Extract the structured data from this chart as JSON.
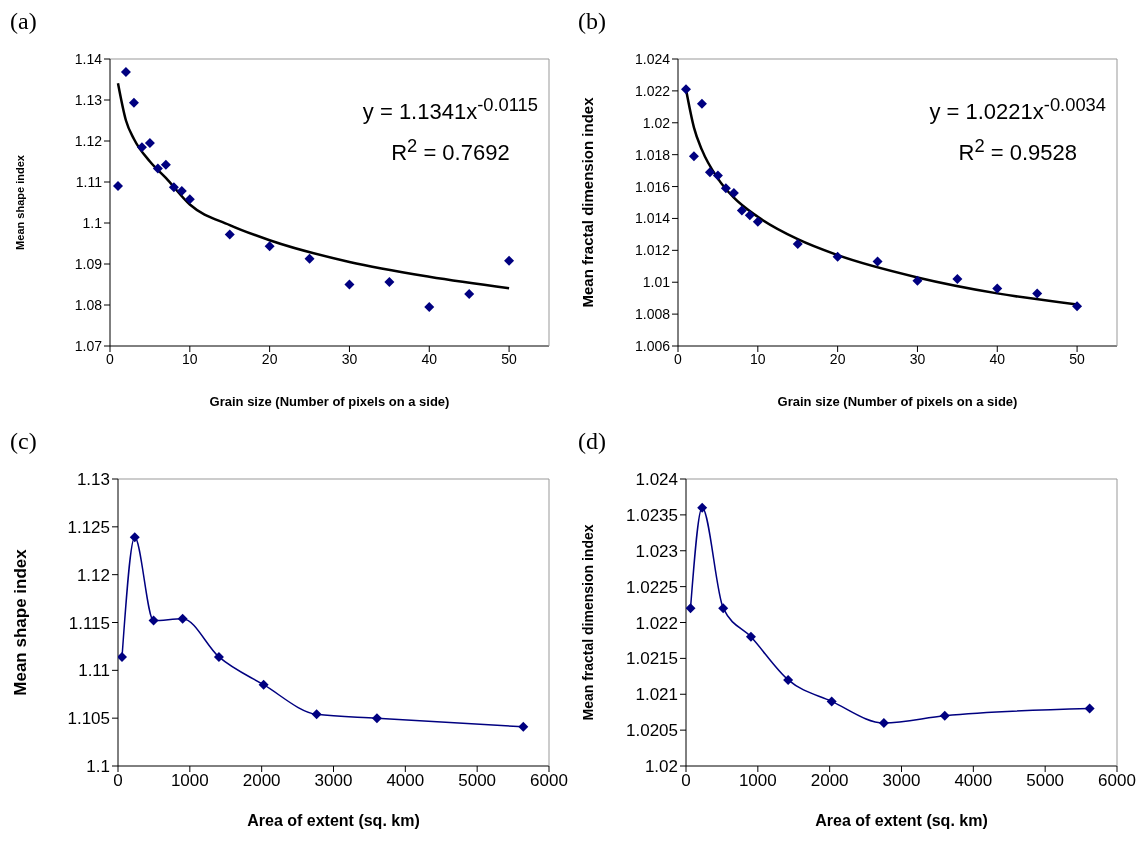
{
  "chart_data": [
    {
      "type": "scatter",
      "title": "(a)",
      "xlabel": "Grain size (Number of pixels on a side)",
      "ylabel": "Mean shape index",
      "xlim": [
        0,
        55
      ],
      "xticks": [
        0,
        10,
        20,
        30,
        40,
        50
      ],
      "ylim": [
        1.07,
        1.14
      ],
      "yticks": [
        1.07,
        1.08,
        1.09,
        1.1,
        1.11,
        1.12,
        1.13,
        1.14
      ],
      "grid": false,
      "legend": false,
      "marker": "diamond",
      "annotations": [
        "y = 1.1341x$^{-0.0115}$",
        "R$^{2}$ = 0.7692"
      ],
      "series": [
        {
          "type": "scatter",
          "color": "#000080",
          "x": [
            1,
            2,
            3,
            4,
            5,
            6,
            7,
            8,
            9,
            10,
            15,
            20,
            25,
            30,
            35,
            40,
            45,
            50
          ],
          "values": [
            1.109,
            1.1368,
            1.1293,
            1.1185,
            1.1195,
            1.1133,
            1.1142,
            1.1087,
            1.1078,
            1.1058,
            1.0972,
            1.0943,
            1.0913,
            1.085,
            1.0856,
            1.0795,
            1.0827,
            1.0908
          ]
        },
        {
          "type": "line",
          "marker": "none",
          "color": "#000000",
          "x": [
            1,
            2,
            3,
            5,
            7,
            10,
            15,
            20,
            30,
            40,
            50
          ],
          "values": [
            1.1341,
            1.125,
            1.1205,
            1.115,
            1.111,
            1.1045,
            1.0995,
            1.0958,
            1.0905,
            1.0869,
            1.0841
          ]
        }
      ]
    },
    {
      "type": "scatter",
      "title": "(b)",
      "xlabel": "Grain size (Number of pixels on a side)",
      "ylabel": "Mean fractal dimension index",
      "xlim": [
        0,
        55
      ],
      "xticks": [
        0,
        10,
        20,
        30,
        40,
        50
      ],
      "ylim": [
        1.006,
        1.024
      ],
      "yticks": [
        1.006,
        1.008,
        1.01,
        1.012,
        1.014,
        1.016,
        1.018,
        1.02,
        1.022,
        1.024
      ],
      "grid": false,
      "legend": false,
      "marker": "diamond",
      "annotations": [
        "y = 1.0221x$^{-0.0034}$",
        "R$^{2}$ = 0.9528"
      ],
      "series": [
        {
          "type": "scatter",
          "color": "#000080",
          "x": [
            1,
            2,
            3,
            4,
            5,
            6,
            7,
            8,
            9,
            10,
            15,
            20,
            25,
            30,
            35,
            40,
            45,
            50
          ],
          "values": [
            1.0221,
            1.0179,
            1.0212,
            1.0169,
            1.0167,
            1.0159,
            1.0156,
            1.0145,
            1.0142,
            1.0138,
            1.0124,
            1.0116,
            1.0113,
            1.0101,
            1.0102,
            1.0096,
            1.0093,
            1.0085
          ]
        },
        {
          "type": "line",
          "marker": "none",
          "color": "#000000",
          "x": [
            1,
            2,
            3,
            5,
            7,
            10,
            15,
            20,
            30,
            40,
            50
          ],
          "values": [
            1.0221,
            1.0197,
            1.0183,
            1.0165,
            1.0153,
            1.0141,
            1.0127,
            1.0117,
            1.0103,
            1.0093,
            1.0086
          ]
        }
      ]
    },
    {
      "type": "line",
      "title": "(c)",
      "xlabel": "Area of extent (sq. km)",
      "ylabel": "Mean shape index",
      "xlim": [
        0,
        6000
      ],
      "xticks": [
        0,
        1000,
        2000,
        3000,
        4000,
        5000,
        6000
      ],
      "ylim": [
        1.1,
        1.13
      ],
      "yticks": [
        1.1,
        1.105,
        1.11,
        1.115,
        1.12,
        1.125,
        1.13
      ],
      "grid": false,
      "legend": false,
      "marker": "diamond",
      "line_style": "solid",
      "series": [
        {
          "color": "#000080",
          "x": [
            56,
            233,
            495,
            900,
            1405,
            2027,
            2765,
            3605,
            5642
          ],
          "values": [
            1.1114,
            1.1239,
            1.1152,
            1.1154,
            1.1114,
            1.1085,
            1.1054,
            1.105,
            1.1041
          ]
        }
      ]
    },
    {
      "type": "line",
      "title": "(d)",
      "xlabel": "Area of extent (sq. km)",
      "ylabel": "Mean fractal dimension index",
      "xlim": [
        0,
        6000
      ],
      "xticks": [
        0,
        1000,
        2000,
        3000,
        4000,
        5000,
        6000
      ],
      "ylim": [
        1.02,
        1.024
      ],
      "yticks": [
        1.02,
        1.0205,
        1.021,
        1.0215,
        1.022,
        1.0225,
        1.023,
        1.0235,
        1.024
      ],
      "grid": false,
      "legend": false,
      "marker": "diamond",
      "line_style": "solid",
      "series": [
        {
          "color": "#000080",
          "x": [
            63,
            225,
            518,
            904,
            1422,
            2028,
            2755,
            3602,
            5619
          ],
          "values": [
            1.0222,
            1.0236,
            1.0222,
            1.0218,
            1.0212,
            1.0209,
            1.0206,
            1.0207,
            1.0208
          ]
        }
      ]
    }
  ]
}
